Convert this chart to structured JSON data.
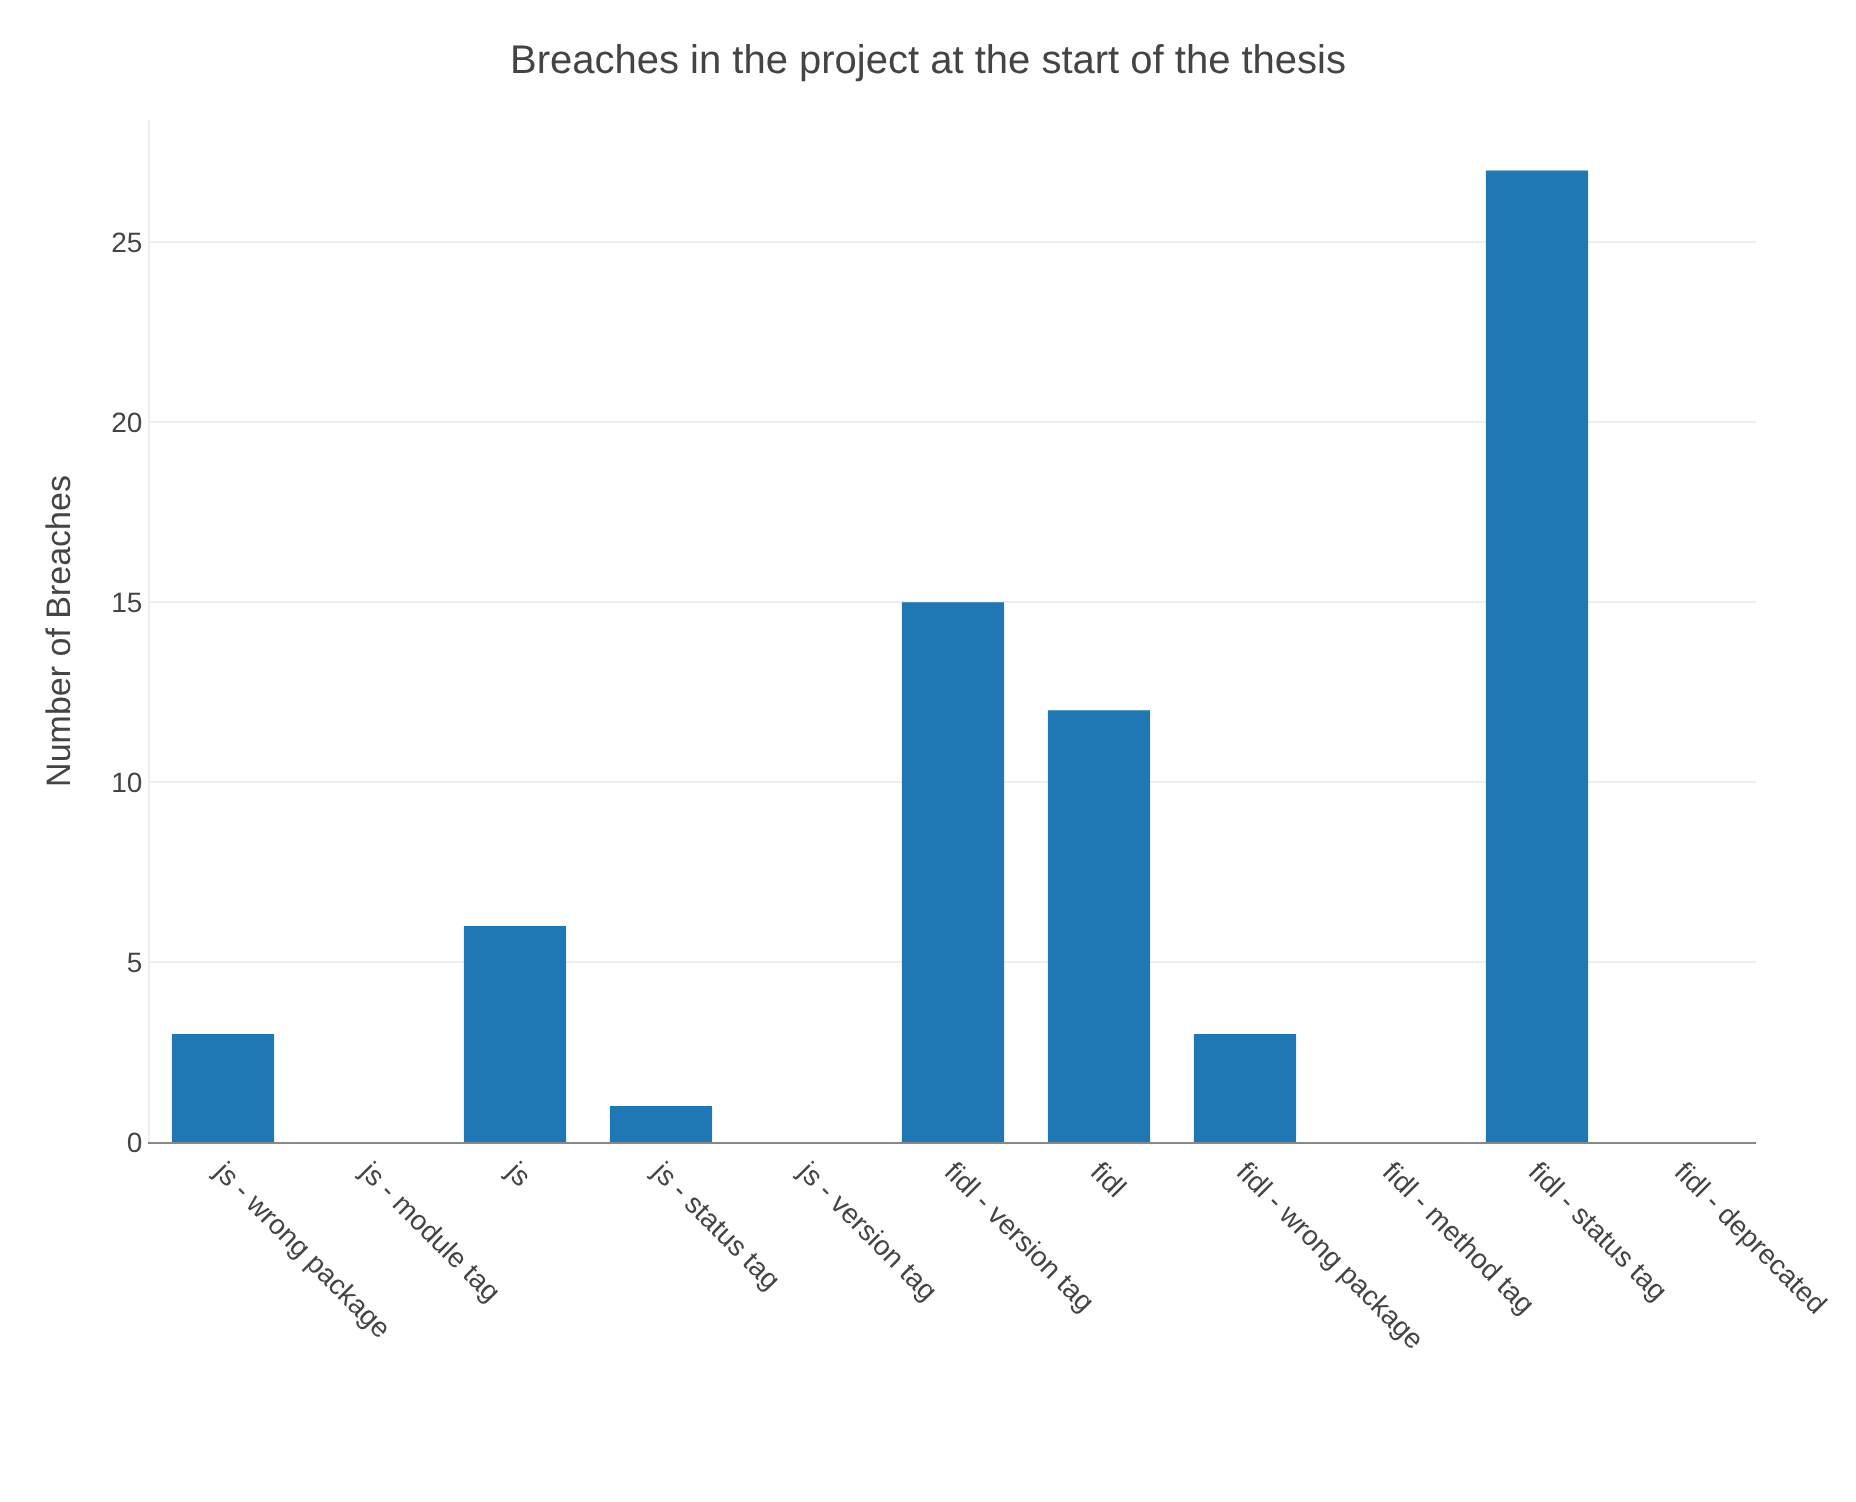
{
  "chart_data": {
    "type": "bar",
    "title": "Breaches in the project at the start of the thesis",
    "ylabel": "Number of Breaches",
    "categories": [
      "js - wrong package",
      "js - module tag",
      "js",
      "js - status tag",
      "js - version tag",
      "fidl - version tag",
      "fidl",
      "fidl - wrong package",
      "fidl - method tag",
      "fidl - status tag",
      "fidl - deprecated"
    ],
    "values": [
      3,
      0,
      6,
      1,
      0,
      15,
      12,
      3,
      0,
      27,
      0
    ],
    "color": "#1f77b4",
    "ylim": [
      0,
      28.4
    ],
    "yticks": [
      0,
      5,
      10,
      15,
      20,
      25
    ],
    "grid": "y",
    "legend": false
  }
}
